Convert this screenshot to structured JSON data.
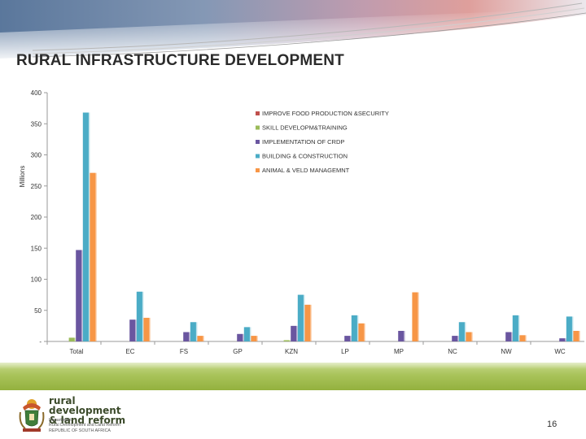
{
  "header": {
    "title": "RURAL INFRASTRUCTURE DEVELOPMENT"
  },
  "chart_data": {
    "type": "bar",
    "ylabel": "Millions",
    "xlabel": "",
    "ylim": [
      0,
      400
    ],
    "yticks": [
      0,
      50,
      100,
      150,
      200,
      250,
      300,
      350,
      400
    ],
    "ytick_labels": [
      "-",
      "50",
      "100",
      "150",
      "200",
      "250",
      "300",
      "350",
      "400"
    ],
    "grid": false,
    "legend_position": "top-right",
    "categories": [
      "Total",
      "EC",
      "FS",
      "GP",
      "KZN",
      "LP",
      "MP",
      "NC",
      "NW",
      "WC"
    ],
    "series": [
      {
        "name": "IMPROVE FOOD PRODUCTION &SECURITY",
        "color": "#c0504d",
        "values": [
          0,
          0,
          0,
          0,
          0,
          0,
          0,
          0,
          0,
          0
        ]
      },
      {
        "name": "SKILL DEVELOPM&TRAINING",
        "color": "#9bbb59",
        "values": [
          6,
          0,
          0,
          0,
          2,
          0,
          0,
          0,
          0,
          0
        ]
      },
      {
        "name": "IMPLEMENTATION OF CRDP",
        "color": "#6a56a0",
        "values": [
          147,
          35,
          15,
          12,
          25,
          9,
          17,
          9,
          15,
          5
        ]
      },
      {
        "name": "BUILDING & CONSTRUCTION",
        "color": "#4bacc6",
        "values": [
          368,
          80,
          31,
          23,
          75,
          42,
          0,
          31,
          42,
          40
        ]
      },
      {
        "name": "ANIMAL & VELD MANAGEMNT",
        "color": "#f79646",
        "values": [
          271,
          38,
          9,
          9,
          59,
          29,
          79,
          15,
          10,
          17
        ]
      }
    ]
  },
  "logo": {
    "name": "rural development\n& land reform",
    "department": "Department:\nRural Development and Land Reform\nREPUBLIC OF SOUTH AFRICA"
  },
  "footer": {
    "page_number": "16"
  }
}
